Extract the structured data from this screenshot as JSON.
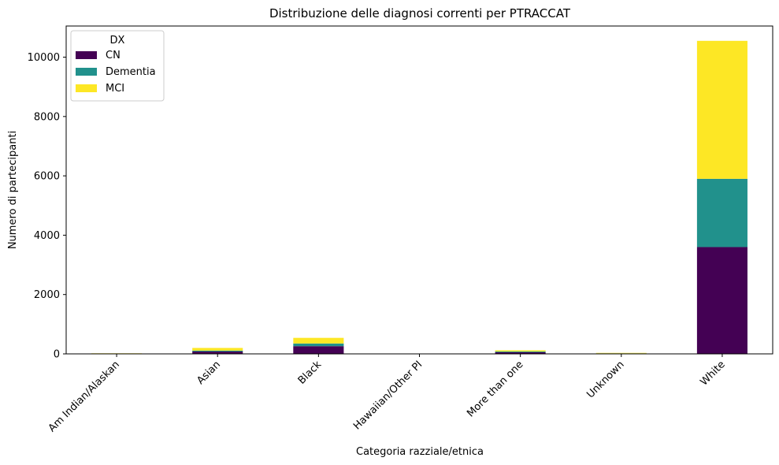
{
  "chart_data": {
    "type": "bar",
    "stacked": true,
    "title": "Distribuzione delle diagnosi correnti per PTRACCAT",
    "xlabel": "Categoria razziale/etnica",
    "ylabel": "Numero di partecipanti",
    "categories": [
      "Am Indian/Alaskan",
      "Asian",
      "Black",
      "Hawaiian/Other PI",
      "More than one",
      "Unknown",
      "White"
    ],
    "series": [
      {
        "name": "CN",
        "color": "#440154",
        "values": [
          8,
          80,
          260,
          5,
          55,
          12,
          3600
        ]
      },
      {
        "name": "Dementia",
        "color": "#21918c",
        "values": [
          3,
          30,
          90,
          1,
          25,
          6,
          2300
        ]
      },
      {
        "name": "MCI",
        "color": "#fde725",
        "values": [
          8,
          90,
          190,
          4,
          40,
          15,
          4650
        ]
      }
    ],
    "ylim": [
      0,
      11050
    ],
    "yticks": [
      0,
      2000,
      4000,
      6000,
      8000,
      10000
    ],
    "legend": {
      "title": "DX",
      "position": "top-left"
    },
    "grid": false
  }
}
